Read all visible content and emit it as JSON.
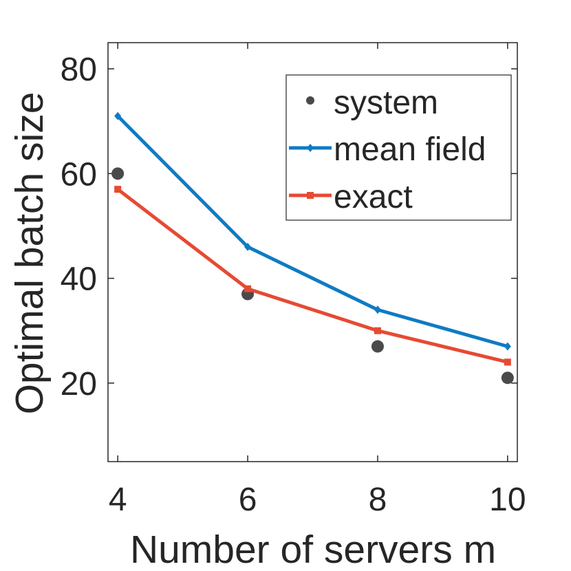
{
  "chart_data": {
    "type": "line",
    "xlabel": "Number of servers m",
    "ylabel": "Optimal batch size",
    "xlim": [
      3.85,
      10.15
    ],
    "ylim": [
      5,
      85
    ],
    "xticks": [
      4,
      6,
      8,
      10
    ],
    "yticks": [
      20,
      40,
      60,
      80
    ],
    "xtick_labels": [
      "4",
      "6",
      "8",
      "10"
    ],
    "ytick_labels": [
      "20",
      "40",
      "60",
      "80"
    ],
    "grid": false,
    "legend_position": "top-right",
    "series": [
      {
        "name": "system",
        "style": "markers",
        "marker": "circle",
        "color": "#4a4a4a",
        "x": [
          4,
          6,
          8,
          10
        ],
        "y": [
          60,
          37,
          27,
          21
        ]
      },
      {
        "name": "mean field",
        "style": "line",
        "marker": "diamond",
        "color": "#0f7bc4",
        "x": [
          4,
          6,
          8,
          10
        ],
        "y": [
          71,
          46,
          34,
          27
        ]
      },
      {
        "name": "exact",
        "style": "line",
        "marker": "square",
        "color": "#e64a33",
        "x": [
          4,
          6,
          8,
          10
        ],
        "y": [
          57,
          38,
          30,
          24
        ]
      }
    ]
  }
}
